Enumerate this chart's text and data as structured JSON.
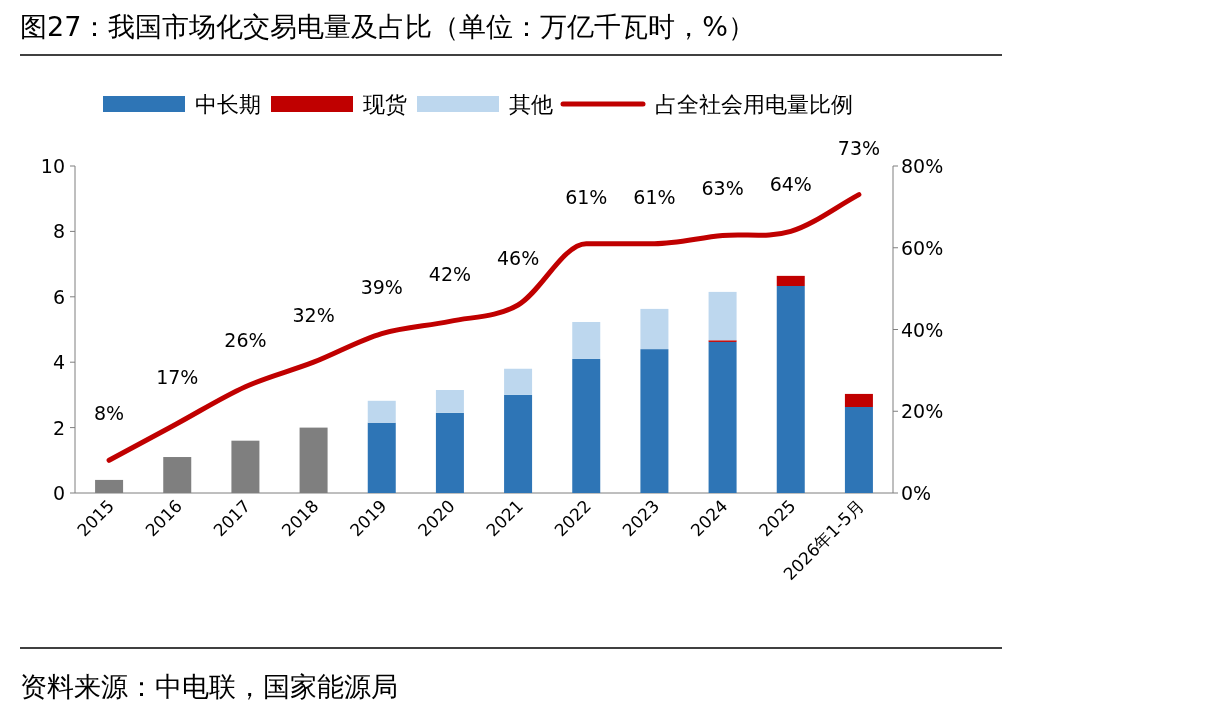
{
  "chart_data": {
    "type": "bar",
    "stacked": true,
    "title": "图27：我国市场化交易电量及占比（单位：万亿千瓦时，%）",
    "annotations": [
      "资料来源：中电联，国家能源局"
    ],
    "categories": [
      "2015",
      "2016",
      "2017",
      "2018",
      "2019",
      "2020",
      "2021",
      "2022",
      "2023",
      "2024",
      "2025",
      "2026年1-5月"
    ],
    "series": [
      {
        "color": "#7f7f7f",
        "values": [
          0.4,
          1.1,
          1.6,
          2.0,
          null,
          null,
          null,
          null,
          null,
          null,
          null,
          null
        ]
      },
      {
        "name": "中长期",
        "color": "#2e75b6",
        "values": [
          null,
          null,
          null,
          null,
          2.15,
          2.45,
          3.0,
          4.1,
          4.4,
          4.62,
          6.33,
          2.63
        ]
      },
      {
        "name": "现货",
        "color": "#c00000",
        "values": [
          null,
          null,
          null,
          null,
          null,
          null,
          null,
          null,
          null,
          0.05,
          0.31,
          0.4
        ]
      },
      {
        "name": "其他",
        "color": "#bdd7ee",
        "values": [
          null,
          null,
          null,
          null,
          0.67,
          0.7,
          0.8,
          1.13,
          1.23,
          1.48,
          null,
          null
        ]
      },
      {
        "name": "占全社会用电量比例",
        "type": "line",
        "axis": "y2",
        "color": "#c00000",
        "values": [
          8,
          17,
          26,
          32,
          39,
          42,
          46,
          61,
          61,
          63,
          64,
          73
        ],
        "value_labels": [
          "8%",
          "17%",
          "26%",
          "32%",
          "39%",
          "42%",
          "46%",
          "61%",
          "61%",
          "63%",
          "64%",
          "73%"
        ]
      }
    ],
    "ylim": [
      0,
      10
    ],
    "yticks": [
      0,
      2,
      4,
      6,
      8,
      10
    ],
    "y2lim": [
      0,
      80
    ],
    "y2ticks": [
      {
        "value": 0,
        "label": "0%"
      },
      {
        "value": 20,
        "label": "20%"
      },
      {
        "value": 40,
        "label": "40%"
      },
      {
        "value": 60,
        "label": "60%"
      },
      {
        "value": 80,
        "label": "80%"
      }
    ],
    "legend": "top",
    "grid": false
  }
}
